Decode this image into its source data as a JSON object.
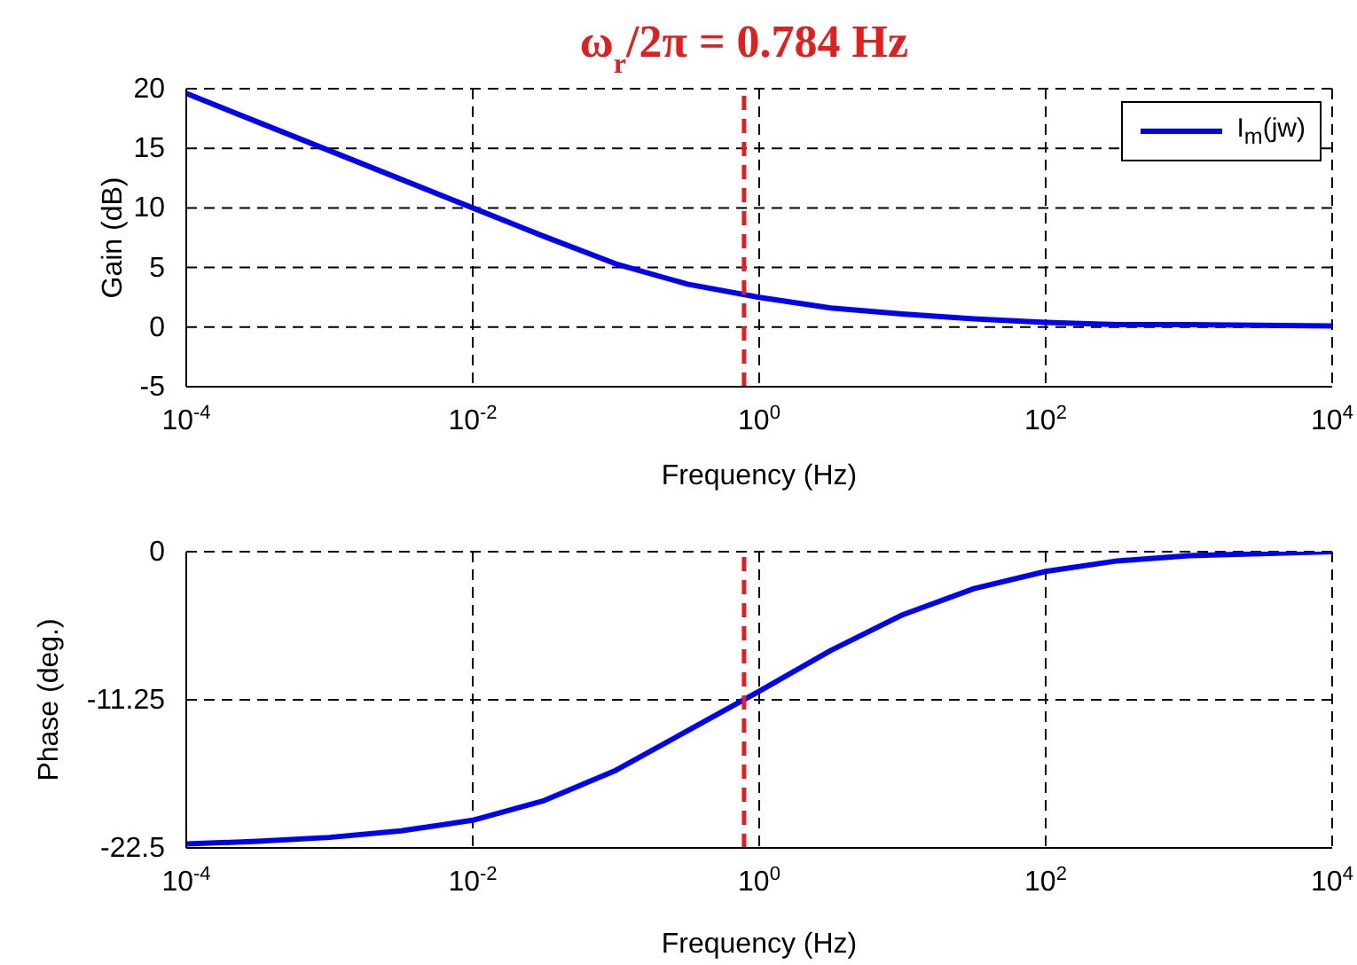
{
  "chart_data": [
    {
      "type": "line",
      "xlabel": "Frequency (Hz)",
      "ylabel": "Gain (dB)",
      "log": "x",
      "grid": true,
      "legend": "top right",
      "line_style": "solid",
      "marker": "none",
      "xlim": [
        0.0001,
        10000
      ],
      "xticks": [
        {
          "value": 0.0001,
          "label": "10$^{-4}$"
        },
        {
          "value": 0.01,
          "label": "10$^{-2}$"
        },
        {
          "value": 1,
          "label": "10$^{0}$"
        },
        {
          "value": 100,
          "label": "10$^{2}$"
        },
        {
          "value": 10000,
          "label": "10$^{4}$"
        }
      ],
      "ylim": [
        -5,
        20
      ],
      "yticks": [
        -5,
        0,
        5,
        10,
        15,
        20
      ],
      "ref_lines": [
        {
          "axis": "x",
          "value": 0.784,
          "label": "ω$_{r}$/2π = 0.784 Hz",
          "color": "#e02020",
          "line_style": "dashed"
        }
      ],
      "series": [
        {
          "name": "I$_{m}$(jw)",
          "color": "#0000ff",
          "x": [
            0.0001,
            0.000316,
            0.001,
            0.00316,
            0.01,
            0.0316,
            0.1,
            0.316,
            1,
            3.16,
            10,
            31.6,
            100,
            316,
            1000,
            10000
          ],
          "values": [
            19.6,
            17.2,
            14.8,
            12.4,
            10,
            7.6,
            5.3,
            3.6,
            2.5,
            1.6,
            1.1,
            0.7,
            0.4,
            0.2,
            0.2,
            0.1
          ]
        }
      ]
    },
    {
      "type": "line",
      "xlabel": "Frequency (Hz)",
      "ylabel": "Phase (deg.)",
      "log": "x",
      "grid": true,
      "line_style": "solid",
      "marker": "none",
      "xlim": [
        0.0001,
        10000
      ],
      "xticks": [
        {
          "value": 0.0001,
          "label": "10$^{-4}$"
        },
        {
          "value": 0.01,
          "label": "10$^{-2}$"
        },
        {
          "value": 1,
          "label": "10$^{0}$"
        },
        {
          "value": 100,
          "label": "10$^{2}$"
        },
        {
          "value": 10000,
          "label": "10$^{4}$"
        }
      ],
      "ylim": [
        -22.5,
        0
      ],
      "yticks": [
        -22.5,
        -11.25,
        0
      ],
      "ref_lines": [
        {
          "axis": "x",
          "value": 0.784,
          "color": "#e02020",
          "line_style": "dashed"
        }
      ],
      "series": [
        {
          "color": "#0000ff",
          "x": [
            0.0001,
            0.000316,
            0.001,
            0.00316,
            0.01,
            0.0316,
            0.1,
            0.316,
            1,
            3.16,
            10,
            31.6,
            100,
            316,
            1000,
            10000
          ],
          "values": [
            -22.2,
            -22.0,
            -21.7,
            -21.2,
            -20.4,
            -18.9,
            -16.6,
            -13.6,
            -10.6,
            -7.5,
            -4.8,
            -2.8,
            -1.5,
            -0.7,
            -0.3,
            0
          ]
        }
      ]
    }
  ]
}
